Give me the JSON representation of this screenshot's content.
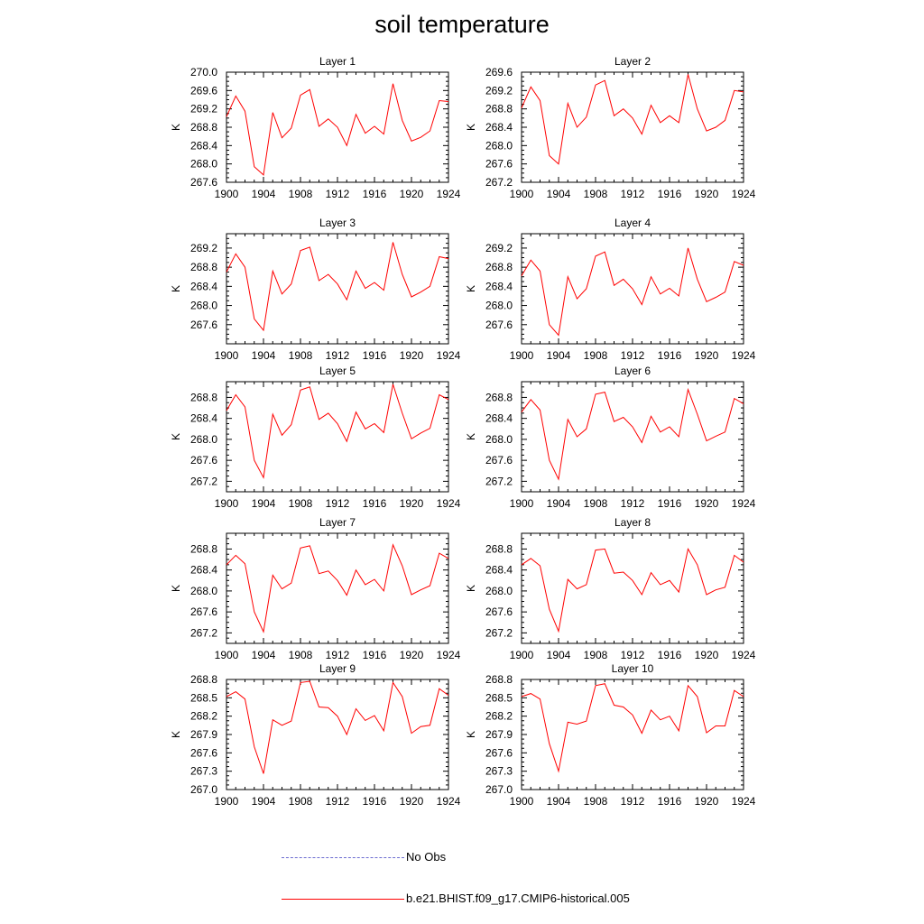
{
  "title": "soil temperature",
  "colors": {
    "model": "#ff0000",
    "obs": "#6b6bd0",
    "axis": "#000000"
  },
  "legend": {
    "obs_label": "No Obs",
    "model_label": "b.e21.BHIST.f09_g17.CMIP6-historical.005"
  },
  "chart_data": [
    {
      "type": "line",
      "title": "Layer 1",
      "xlabel": "",
      "ylabel": "K",
      "xlim": [
        1900,
        1924
      ],
      "ylim": [
        267.6,
        270.0
      ],
      "xticks": [
        "1900",
        "1904",
        "1908",
        "1912",
        "1916",
        "1920",
        "1924"
      ],
      "yticks": [
        "267.6",
        "268.0",
        "268.4",
        "268.8",
        "269.2",
        "269.6",
        "270.0"
      ],
      "x": [
        1900,
        1901,
        1902,
        1903,
        1904,
        1905,
        1906,
        1907,
        1908,
        1909,
        1910,
        1911,
        1912,
        1913,
        1914,
        1915,
        1916,
        1917,
        1918,
        1919,
        1920,
        1921,
        1922,
        1923,
        1924
      ],
      "series": [
        {
          "name": "b.e21.BHIST.f09_g17.CMIP6-historical.005",
          "values": [
            269.03,
            269.48,
            269.15,
            267.94,
            267.76,
            269.12,
            268.57,
            268.78,
            269.5,
            269.62,
            268.82,
            268.98,
            268.8,
            268.4,
            269.08,
            268.67,
            268.82,
            268.65,
            269.75,
            268.95,
            268.5,
            268.58,
            268.72,
            269.38,
            269.36
          ]
        }
      ]
    },
    {
      "type": "line",
      "title": "Layer 2",
      "xlabel": "",
      "ylabel": "K",
      "xlim": [
        1900,
        1924
      ],
      "ylim": [
        267.2,
        269.6
      ],
      "xticks": [
        "1900",
        "1904",
        "1908",
        "1912",
        "1916",
        "1920",
        "1924"
      ],
      "yticks": [
        "267.2",
        "267.6",
        "268.0",
        "268.4",
        "268.8",
        "269.2",
        "269.6"
      ],
      "x": [
        1900,
        1901,
        1902,
        1903,
        1904,
        1905,
        1906,
        1907,
        1908,
        1909,
        1910,
        1911,
        1912,
        1913,
        1914,
        1915,
        1916,
        1917,
        1918,
        1919,
        1920,
        1921,
        1922,
        1923,
        1924
      ],
      "series": [
        {
          "name": "b.e21.BHIST.f09_g17.CMIP6-historical.005",
          "values": [
            268.82,
            269.28,
            268.98,
            267.78,
            267.6,
            268.92,
            268.4,
            268.62,
            269.32,
            269.42,
            268.65,
            268.8,
            268.6,
            268.25,
            268.88,
            268.5,
            268.65,
            268.5,
            269.55,
            268.8,
            268.32,
            268.4,
            268.55,
            269.2,
            269.17
          ]
        }
      ]
    },
    {
      "type": "line",
      "title": "Layer 3",
      "xlabel": "",
      "ylabel": "K",
      "xlim": [
        1900,
        1924
      ],
      "ylim": [
        267.2,
        269.5
      ],
      "xticks": [
        "1900",
        "1904",
        "1908",
        "1912",
        "1916",
        "1920",
        "1924"
      ],
      "yticks": [
        "267.6",
        "268.0",
        "268.4",
        "268.8",
        "269.2"
      ],
      "x": [
        1900,
        1901,
        1902,
        1903,
        1904,
        1905,
        1906,
        1907,
        1908,
        1909,
        1910,
        1911,
        1912,
        1913,
        1914,
        1915,
        1916,
        1917,
        1918,
        1919,
        1920,
        1921,
        1922,
        1923,
        1924
      ],
      "series": [
        {
          "name": "b.e21.BHIST.f09_g17.CMIP6-historical.005",
          "values": [
            268.7,
            269.08,
            268.8,
            267.72,
            267.48,
            268.72,
            268.24,
            268.45,
            269.15,
            269.22,
            268.52,
            268.65,
            268.45,
            268.12,
            268.72,
            268.36,
            268.48,
            268.32,
            269.32,
            268.65,
            268.18,
            268.28,
            268.4,
            269.02,
            268.98
          ]
        }
      ]
    },
    {
      "type": "line",
      "title": "Layer 4",
      "xlabel": "",
      "ylabel": "K",
      "xlim": [
        1900,
        1924
      ],
      "ylim": [
        267.2,
        269.5
      ],
      "xticks": [
        "1900",
        "1904",
        "1908",
        "1912",
        "1916",
        "1920",
        "1924"
      ],
      "yticks": [
        "267.6",
        "268.0",
        "268.4",
        "268.8",
        "269.2"
      ],
      "x": [
        1900,
        1901,
        1902,
        1903,
        1904,
        1905,
        1906,
        1907,
        1908,
        1909,
        1910,
        1911,
        1912,
        1913,
        1914,
        1915,
        1916,
        1917,
        1918,
        1919,
        1920,
        1921,
        1922,
        1923,
        1924
      ],
      "series": [
        {
          "name": "b.e21.BHIST.f09_g17.CMIP6-historical.005",
          "values": [
            268.62,
            268.95,
            268.72,
            267.6,
            267.38,
            268.6,
            268.14,
            268.35,
            269.03,
            269.12,
            268.42,
            268.55,
            268.35,
            268.02,
            268.6,
            268.24,
            268.36,
            268.2,
            269.2,
            268.55,
            268.08,
            268.17,
            268.28,
            268.92,
            268.84
          ]
        }
      ]
    },
    {
      "type": "line",
      "title": "Layer 5",
      "xlabel": "",
      "ylabel": "K",
      "xlim": [
        1900,
        1924
      ],
      "ylim": [
        267.0,
        269.1
      ],
      "xticks": [
        "1900",
        "1904",
        "1908",
        "1912",
        "1916",
        "1920",
        "1924"
      ],
      "yticks": [
        "267.2",
        "267.6",
        "268.0",
        "268.4",
        "268.8"
      ],
      "x": [
        1900,
        1901,
        1902,
        1903,
        1904,
        1905,
        1906,
        1907,
        1908,
        1909,
        1910,
        1911,
        1912,
        1913,
        1914,
        1915,
        1916,
        1917,
        1918,
        1919,
        1920,
        1921,
        1922,
        1923,
        1924
      ],
      "series": [
        {
          "name": "b.e21.BHIST.f09_g17.CMIP6-historical.005",
          "values": [
            268.55,
            268.85,
            268.62,
            267.6,
            267.27,
            268.48,
            268.08,
            268.28,
            268.94,
            269.0,
            268.38,
            268.5,
            268.3,
            267.96,
            268.52,
            268.2,
            268.3,
            268.13,
            269.05,
            268.5,
            268.01,
            268.12,
            268.21,
            268.85,
            268.76
          ]
        }
      ]
    },
    {
      "type": "line",
      "title": "Layer 6",
      "xlabel": "",
      "ylabel": "K",
      "xlim": [
        1900,
        1924
      ],
      "ylim": [
        267.0,
        269.1
      ],
      "xticks": [
        "1900",
        "1904",
        "1908",
        "1912",
        "1916",
        "1920",
        "1924"
      ],
      "yticks": [
        "267.2",
        "267.6",
        "268.0",
        "268.4",
        "268.8"
      ],
      "x": [
        1900,
        1901,
        1902,
        1903,
        1904,
        1905,
        1906,
        1907,
        1908,
        1909,
        1910,
        1911,
        1912,
        1913,
        1914,
        1915,
        1916,
        1917,
        1918,
        1919,
        1920,
        1921,
        1922,
        1923,
        1924
      ],
      "series": [
        {
          "name": "b.e21.BHIST.f09_g17.CMIP6-historical.005",
          "values": [
            268.52,
            268.76,
            268.56,
            267.6,
            267.24,
            268.38,
            268.05,
            268.2,
            268.86,
            268.9,
            268.34,
            268.42,
            268.24,
            267.94,
            268.44,
            268.14,
            268.24,
            268.05,
            268.95,
            268.48,
            267.97,
            268.06,
            268.14,
            268.78,
            268.68
          ]
        }
      ]
    },
    {
      "type": "line",
      "title": "Layer 7",
      "xlabel": "",
      "ylabel": "K",
      "xlim": [
        1900,
        1924
      ],
      "ylim": [
        267.0,
        269.1
      ],
      "xticks": [
        "1900",
        "1904",
        "1908",
        "1912",
        "1916",
        "1920",
        "1924"
      ],
      "yticks": [
        "267.2",
        "267.6",
        "268.0",
        "268.4",
        "268.8"
      ],
      "x": [
        1900,
        1901,
        1902,
        1903,
        1904,
        1905,
        1906,
        1907,
        1908,
        1909,
        1910,
        1911,
        1912,
        1913,
        1914,
        1915,
        1916,
        1917,
        1918,
        1919,
        1920,
        1921,
        1922,
        1923,
        1924
      ],
      "series": [
        {
          "name": "b.e21.BHIST.f09_g17.CMIP6-historical.005",
          "values": [
            268.5,
            268.68,
            268.52,
            267.6,
            267.22,
            268.3,
            268.04,
            268.15,
            268.82,
            268.86,
            268.33,
            268.38,
            268.2,
            267.92,
            268.4,
            268.12,
            268.22,
            268.0,
            268.88,
            268.48,
            267.93,
            268.02,
            268.1,
            268.72,
            268.62
          ]
        }
      ]
    },
    {
      "type": "line",
      "title": "Layer 8",
      "xlabel": "",
      "ylabel": "K",
      "xlim": [
        1900,
        1924
      ],
      "ylim": [
        267.0,
        269.1
      ],
      "xticks": [
        "1900",
        "1904",
        "1908",
        "1912",
        "1916",
        "1920",
        "1924"
      ],
      "yticks": [
        "267.2",
        "267.6",
        "268.0",
        "268.4",
        "268.8"
      ],
      "x": [
        1900,
        1901,
        1902,
        1903,
        1904,
        1905,
        1906,
        1907,
        1908,
        1909,
        1910,
        1911,
        1912,
        1913,
        1914,
        1915,
        1916,
        1917,
        1918,
        1919,
        1920,
        1921,
        1922,
        1923,
        1924
      ],
      "series": [
        {
          "name": "b.e21.BHIST.f09_g17.CMIP6-historical.005",
          "values": [
            268.5,
            268.62,
            268.48,
            267.65,
            267.23,
            268.22,
            268.04,
            268.12,
            268.78,
            268.8,
            268.34,
            268.36,
            268.2,
            267.93,
            268.35,
            268.12,
            268.2,
            267.98,
            268.8,
            268.5,
            267.93,
            268.02,
            268.07,
            268.68,
            268.55
          ]
        }
      ]
    },
    {
      "type": "line",
      "title": "Layer 9",
      "xlabel": "",
      "ylabel": "K",
      "xlim": [
        1900,
        1924
      ],
      "ylim": [
        267.0,
        268.8
      ],
      "xticks": [
        "1900",
        "1904",
        "1908",
        "1912",
        "1916",
        "1920",
        "1924"
      ],
      "yticks": [
        "267.0",
        "267.3",
        "267.6",
        "267.9",
        "268.2",
        "268.5",
        "268.8"
      ],
      "x": [
        1900,
        1901,
        1902,
        1903,
        1904,
        1905,
        1906,
        1907,
        1908,
        1909,
        1910,
        1911,
        1912,
        1913,
        1914,
        1915,
        1916,
        1917,
        1918,
        1919,
        1920,
        1921,
        1922,
        1923,
        1924
      ],
      "series": [
        {
          "name": "b.e21.BHIST.f09_g17.CMIP6-historical.005",
          "values": [
            268.52,
            268.6,
            268.48,
            267.7,
            267.26,
            268.14,
            268.05,
            268.12,
            268.75,
            268.77,
            268.35,
            268.34,
            268.2,
            267.9,
            268.32,
            268.13,
            268.21,
            267.96,
            268.75,
            268.52,
            267.92,
            268.03,
            268.05,
            268.65,
            268.54
          ]
        }
      ]
    },
    {
      "type": "line",
      "title": "Layer 10",
      "xlabel": "",
      "ylabel": "K",
      "xlim": [
        1900,
        1924
      ],
      "ylim": [
        267.0,
        268.8
      ],
      "xticks": [
        "1900",
        "1904",
        "1908",
        "1912",
        "1916",
        "1920",
        "1924"
      ],
      "yticks": [
        "267.0",
        "267.3",
        "267.6",
        "267.9",
        "268.2",
        "268.5",
        "268.8"
      ],
      "x": [
        1900,
        1901,
        1902,
        1903,
        1904,
        1905,
        1906,
        1907,
        1908,
        1909,
        1910,
        1911,
        1912,
        1913,
        1914,
        1915,
        1916,
        1917,
        1918,
        1919,
        1920,
        1921,
        1922,
        1923,
        1924
      ],
      "series": [
        {
          "name": "b.e21.BHIST.f09_g17.CMIP6-historical.005",
          "values": [
            268.52,
            268.57,
            268.48,
            267.75,
            267.3,
            268.1,
            268.07,
            268.12,
            268.7,
            268.73,
            268.38,
            268.35,
            268.22,
            267.92,
            268.3,
            268.14,
            268.2,
            267.96,
            268.7,
            268.52,
            267.93,
            268.04,
            268.04,
            268.62,
            268.52
          ]
        }
      ]
    }
  ]
}
